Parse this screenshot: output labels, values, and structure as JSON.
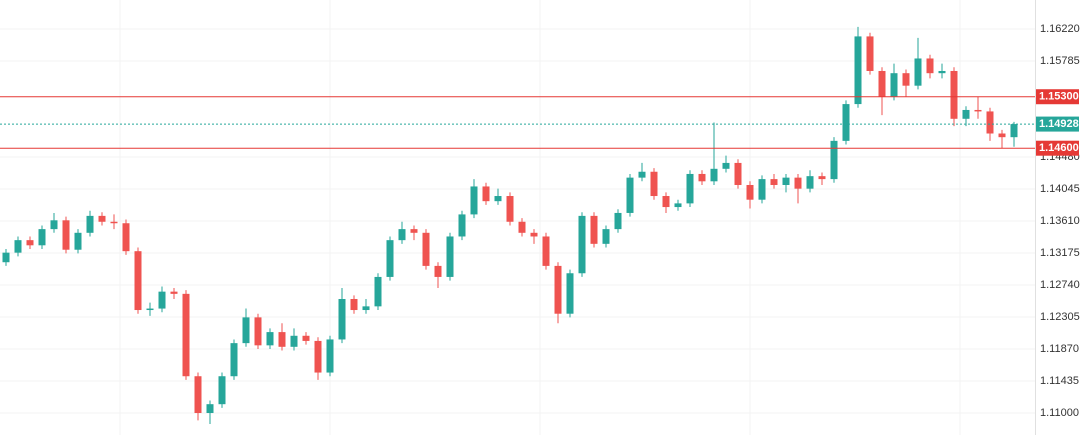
{
  "chart_data": {
    "type": "candlestick",
    "open": [
      1.1305,
      1.1318,
      1.1335,
      1.1328,
      1.135,
      1.1362,
      1.1322,
      1.1345,
      1.1368,
      1.136,
      1.1358,
      1.132,
      1.124,
      1.1242,
      1.1265,
      1.1262,
      1.115,
      1.11,
      1.1112,
      1.115,
      1.1195,
      1.123,
      1.1192,
      1.121,
      1.119,
      1.1205,
      1.1198,
      1.1155,
      1.12,
      1.1255,
      1.124,
      1.1245,
      1.1285,
      1.1335,
      1.135,
      1.1345,
      1.13,
      1.1285,
      1.134,
      1.137,
      1.1408,
      1.1388,
      1.1395,
      1.136,
      1.1345,
      1.134,
      1.13,
      1.1235,
      1.129,
      1.1368,
      1.133,
      1.135,
      1.1372,
      1.142,
      1.1428,
      1.1395,
      1.138,
      1.1385,
      1.1425,
      1.1415,
      1.1432,
      1.144,
      1.141,
      1.139,
      1.1418,
      1.141,
      1.142,
      1.1405,
      1.1422,
      1.1418,
      1.147,
      1.152,
      1.1612,
      1.1565,
      1.153,
      1.1562,
      1.1545,
      1.1582,
      1.1562,
      1.1565,
      1.15,
      1.1512,
      1.151,
      1.148,
      1.1475
    ],
    "high": [
      1.1323,
      1.134,
      1.134,
      1.1355,
      1.1372,
      1.1367,
      1.135,
      1.1375,
      1.1373,
      1.137,
      1.1363,
      1.1325,
      1.125,
      1.1272,
      1.127,
      1.1267,
      1.1155,
      1.1117,
      1.1155,
      1.12,
      1.1242,
      1.1235,
      1.1215,
      1.1222,
      1.1215,
      1.121,
      1.1203,
      1.1205,
      1.127,
      1.126,
      1.1255,
      1.129,
      1.134,
      1.136,
      1.1355,
      1.135,
      1.1305,
      1.1345,
      1.1375,
      1.1418,
      1.1413,
      1.1405,
      1.14,
      1.1365,
      1.135,
      1.1345,
      1.1305,
      1.1295,
      1.1373,
      1.1373,
      1.1355,
      1.1377,
      1.1425,
      1.144,
      1.1433,
      1.14,
      1.139,
      1.143,
      1.143,
      1.1495,
      1.145,
      1.1445,
      1.1415,
      1.1423,
      1.1425,
      1.1425,
      1.1425,
      1.143,
      1.1427,
      1.1475,
      1.1525,
      1.1625,
      1.1617,
      1.157,
      1.1575,
      1.1567,
      1.161,
      1.1587,
      1.1575,
      1.157,
      1.1517,
      1.153,
      1.1515,
      1.1485,
      1.14958
    ],
    "low": [
      1.13,
      1.1313,
      1.1323,
      1.1323,
      1.1345,
      1.1317,
      1.1317,
      1.134,
      1.1355,
      1.135,
      1.1315,
      1.1235,
      1.1232,
      1.1237,
      1.1255,
      1.1145,
      1.109,
      1.1085,
      1.1107,
      1.1145,
      1.119,
      1.1187,
      1.1187,
      1.1185,
      1.1185,
      1.1193,
      1.1145,
      1.115,
      1.1195,
      1.1235,
      1.1235,
      1.124,
      1.128,
      1.133,
      1.1335,
      1.1295,
      1.127,
      1.128,
      1.1335,
      1.1365,
      1.1383,
      1.1383,
      1.1355,
      1.134,
      1.133,
      1.1295,
      1.1222,
      1.123,
      1.1285,
      1.1325,
      1.1325,
      1.1345,
      1.1367,
      1.1415,
      1.139,
      1.1372,
      1.1375,
      1.138,
      1.141,
      1.141,
      1.1427,
      1.1405,
      1.1378,
      1.1385,
      1.1405,
      1.14,
      1.1385,
      1.14,
      1.141,
      1.1413,
      1.1465,
      1.1515,
      1.156,
      1.1505,
      1.1525,
      1.153,
      1.154,
      1.1555,
      1.1555,
      1.149,
      1.149,
      1.15,
      1.147,
      1.146,
      1.1462
    ],
    "close": [
      1.1318,
      1.1335,
      1.1328,
      1.135,
      1.1362,
      1.1322,
      1.1345,
      1.1368,
      1.136,
      1.1358,
      1.132,
      1.124,
      1.1242,
      1.1265,
      1.1262,
      1.115,
      1.11,
      1.1112,
      1.115,
      1.1195,
      1.123,
      1.1192,
      1.121,
      1.119,
      1.1205,
      1.1198,
      1.1155,
      1.12,
      1.1255,
      1.124,
      1.1245,
      1.1285,
      1.1335,
      1.135,
      1.1345,
      1.13,
      1.1285,
      1.134,
      1.137,
      1.1408,
      1.1388,
      1.1395,
      1.136,
      1.1345,
      1.134,
      1.13,
      1.1235,
      1.129,
      1.1368,
      1.133,
      1.135,
      1.1372,
      1.142,
      1.1428,
      1.1395,
      1.138,
      1.1385,
      1.1425,
      1.1415,
      1.1432,
      1.144,
      1.141,
      1.139,
      1.1418,
      1.141,
      1.142,
      1.1405,
      1.1422,
      1.1418,
      1.147,
      1.152,
      1.1612,
      1.1565,
      1.153,
      1.1562,
      1.1545,
      1.1582,
      1.1562,
      1.1565,
      1.15,
      1.1512,
      1.151,
      1.148,
      1.1475,
      1.14928
    ],
    "up_color": "#26a69a",
    "down_color": "#ef5350",
    "ylim": [
      1.10701,
      1.16615
    ],
    "yticks": [
      {
        "value": 1.1622,
        "label": "1.16220"
      },
      {
        "value": 1.15785,
        "label": "1.15785"
      },
      {
        "value": 1.1448,
        "label": "1.14480"
      },
      {
        "value": 1.14045,
        "label": "1.14045"
      },
      {
        "value": 1.1361,
        "label": "1.13610"
      },
      {
        "value": 1.13175,
        "label": "1.13175"
      },
      {
        "value": 1.1274,
        "label": "1.12740"
      },
      {
        "value": 1.12305,
        "label": "1.12305"
      },
      {
        "value": 1.1187,
        "label": "1.11870"
      },
      {
        "value": 1.11435,
        "label": "1.11435"
      },
      {
        "value": 1.11,
        "label": "1.11000"
      }
    ],
    "grid": true,
    "price_lines": [
      {
        "value": 1.153,
        "label": "1.15300",
        "color": "#e53935",
        "style": "solid"
      },
      {
        "value": 1.14928,
        "label": "1.14928",
        "color": "#26a69a",
        "style": "dotted"
      },
      {
        "value": 1.146,
        "label": "1.14600",
        "color": "#e53935",
        "style": "solid"
      }
    ]
  }
}
